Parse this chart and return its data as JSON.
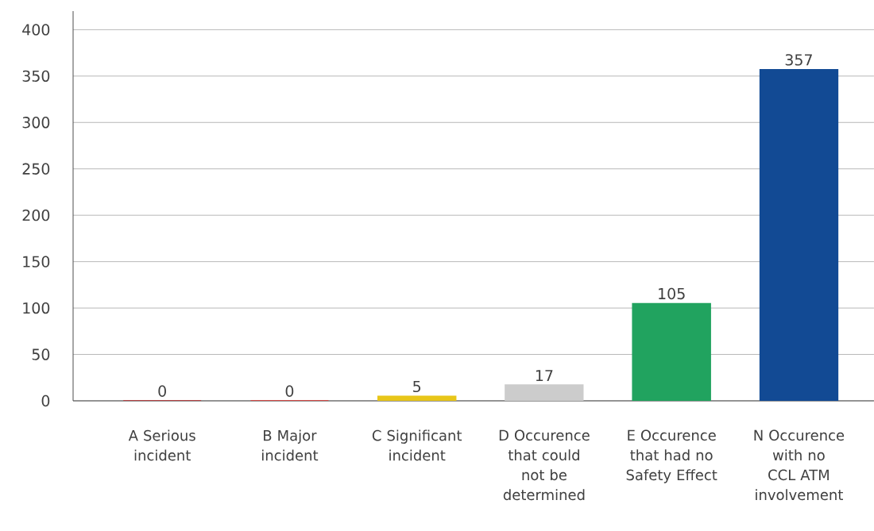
{
  "chart_data": {
    "type": "bar",
    "categories": [
      "A Serious incident",
      "B Major incident",
      "C Significant incident",
      "D Occurence that could not be determined",
      "E Occurence that had no Safety Effect",
      "N Occurence with no CCL ATM involvement"
    ],
    "values": [
      0,
      0,
      5,
      17,
      105,
      357
    ],
    "colors": [
      "#c0282d",
      "#e8322f",
      "#e8c619",
      "#cccccc",
      "#21a35f",
      "#124a94"
    ],
    "ylim": [
      0,
      420
    ],
    "yticks": [
      0,
      50,
      100,
      150,
      200,
      250,
      300,
      350,
      400
    ],
    "grid": "y",
    "data_labels": true
  }
}
